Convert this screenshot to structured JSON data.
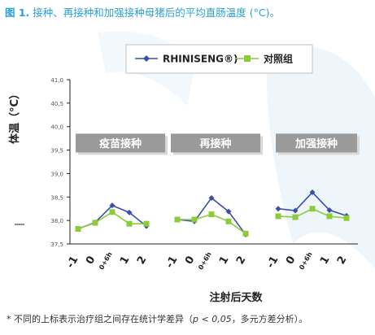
{
  "figure": {
    "title_prefix": "图 1.",
    "title_text": "接种、再接种和加强接种母猪后的平均直肠温度 (°C)。",
    "footnote": {
      "pre": "* 不同的上标表示治疗组之间存在统计学差异（",
      "p": "p < 0,05",
      "post": "，多元方差分析）。"
    }
  },
  "chart_data": {
    "type": "line",
    "ylabel": "体温（°C）",
    "xlabel": "注射后天数",
    "ylim": [
      37.5,
      41.0
    ],
    "yticks": [
      "41,0",
      "40,5",
      "40,0",
      "39,5",
      "39,0",
      "38,5",
      "38,0",
      "37,5"
    ],
    "grid": false,
    "legend_position": "top",
    "groups": [
      {
        "label": "疫苗接种",
        "x_ticks": [
          "-1",
          "0",
          "0+6h",
          "1",
          "2"
        ]
      },
      {
        "label": "再接种",
        "x_ticks": [
          "-1",
          "0",
          "0+6h",
          "1",
          "2"
        ]
      },
      {
        "label": "加强接种",
        "x_ticks": [
          "-1",
          "0",
          "0+6h",
          "1",
          "2"
        ]
      }
    ],
    "series": [
      {
        "name": "RHINISENG®)",
        "color": "#3b4ea8",
        "marker": "diamond",
        "values": [
          [
            37.82,
            37.96,
            38.32,
            38.17,
            37.88
          ],
          [
            38.02,
            37.98,
            38.48,
            38.19,
            37.7
          ],
          [
            38.25,
            38.21,
            38.6,
            38.22,
            38.1
          ]
        ]
      },
      {
        "name": "对照组",
        "color": "#8ccc3a",
        "marker": "square",
        "values": [
          [
            37.82,
            37.95,
            38.18,
            37.93,
            37.93
          ],
          [
            38.02,
            38.02,
            38.13,
            37.98,
            37.72
          ],
          [
            38.09,
            38.07,
            38.25,
            38.09,
            38.05
          ]
        ]
      }
    ],
    "colors": {
      "axis": "#222222",
      "group_box": "#9a9a9a",
      "group_text": "#ffffff",
      "tick_text": "#555555"
    }
  }
}
